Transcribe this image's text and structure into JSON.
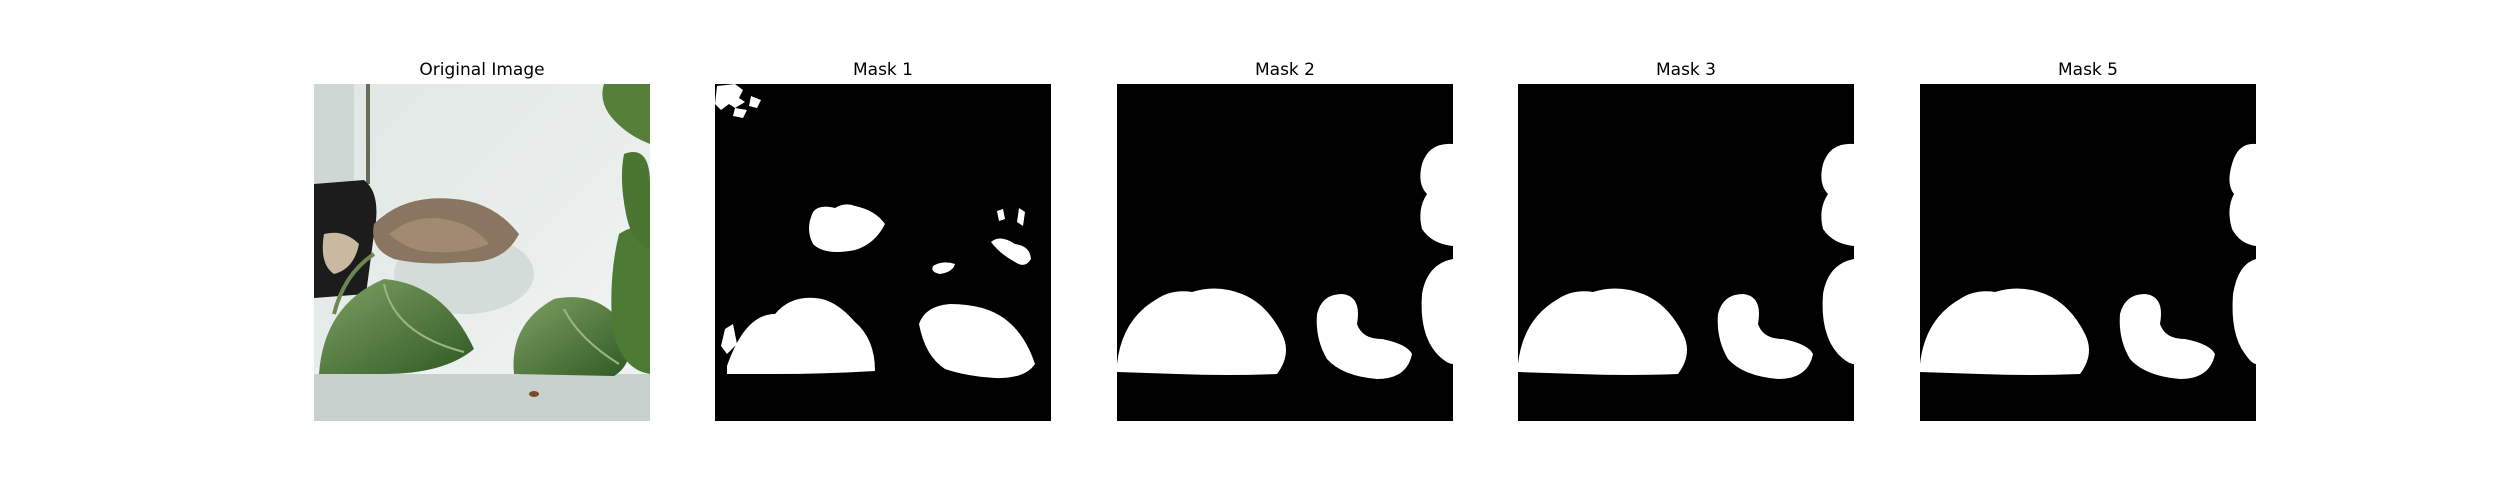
{
  "panels": [
    {
      "title": "Original Image",
      "type": "photo",
      "subject": "potted plant with leaves"
    },
    {
      "title": "Mask 1",
      "type": "mask"
    },
    {
      "title": "Mask 2",
      "type": "mask"
    },
    {
      "title": "Mask 3",
      "type": "mask"
    },
    {
      "title": "Mask 5",
      "type": "mask"
    }
  ],
  "colors": {
    "mask_background": "#000000",
    "mask_foreground": "#ffffff",
    "leaf_dark": "#3f6a2e",
    "leaf_light": "#7fa063",
    "wall": "#e6ecea",
    "pot": "#1c1c1c",
    "dry_leaf": "#8a7560"
  }
}
